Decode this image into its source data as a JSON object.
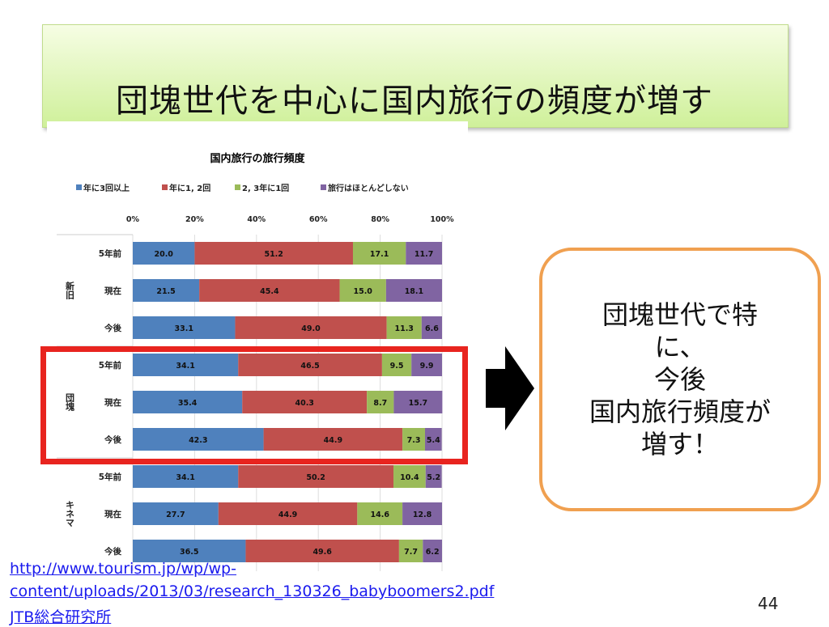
{
  "slide": {
    "title": "団塊世代を中心に国内旅行の頻度が増す",
    "callout_lines": [
      "団塊世代で特",
      "に、",
      "今後",
      "国内旅行頻度が",
      "増す！"
    ],
    "source_line1": "http://www.tourism.jp/wp/wp-",
    "source_line2": "content/uploads/2013/03/research_130326_babyboomers2.pdf",
    "source_line3": "JTB総合研究所",
    "page_number": "44"
  },
  "colors": {
    "series": [
      "#4f81bd",
      "#c0504d",
      "#9bbb59",
      "#8064a2"
    ],
    "highlight": "#e8241f",
    "callout_border": "#f0a050"
  },
  "chart_data": {
    "type": "bar",
    "orientation": "horizontal-stacked-100",
    "title": "国内旅行の旅行頻度",
    "legend": [
      "年に3回以上",
      "年に1, 2回",
      "2, 3年に1回",
      "旅行はほとんどしない"
    ],
    "x_ticks": [
      "0%",
      "20%",
      "40%",
      "60%",
      "80%",
      "100%"
    ],
    "xlim": [
      0,
      100
    ],
    "groups": [
      {
        "name": "新旧",
        "rows": [
          {
            "label": "5年前",
            "values": [
              20.0,
              51.2,
              17.1,
              11.7
            ]
          },
          {
            "label": "現在",
            "values": [
              21.5,
              45.4,
              15.0,
              18.1
            ]
          },
          {
            "label": "今後",
            "values": [
              33.1,
              49.0,
              11.3,
              6.6
            ]
          }
        ]
      },
      {
        "name": "団塊",
        "rows": [
          {
            "label": "5年前",
            "values": [
              34.1,
              46.5,
              9.5,
              9.9
            ]
          },
          {
            "label": "現在",
            "values": [
              35.4,
              40.3,
              8.7,
              15.7
            ]
          },
          {
            "label": "今後",
            "values": [
              42.3,
              44.9,
              7.3,
              5.4
            ]
          }
        ]
      },
      {
        "name": "キネマ",
        "rows": [
          {
            "label": "5年前",
            "values": [
              34.1,
              50.2,
              10.4,
              5.2
            ]
          },
          {
            "label": "現在",
            "values": [
              27.7,
              44.9,
              14.6,
              12.8
            ]
          },
          {
            "label": "今後",
            "values": [
              36.5,
              49.6,
              7.7,
              6.2
            ]
          }
        ]
      }
    ]
  }
}
